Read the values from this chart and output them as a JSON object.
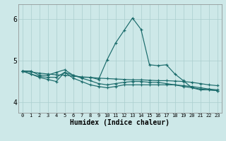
{
  "title": "",
  "xlabel": "Humidex (Indice chaleur)",
  "ylabel": "",
  "bg_color": "#cde8e8",
  "grid_color": "#aacece",
  "line_color": "#1a6b6b",
  "x_ticks": [
    0,
    1,
    2,
    3,
    4,
    5,
    6,
    7,
    8,
    9,
    10,
    11,
    12,
    13,
    14,
    15,
    16,
    17,
    18,
    19,
    20,
    21,
    22,
    23
  ],
  "y_ticks": [
    4,
    5,
    6
  ],
  "ylim": [
    3.75,
    6.35
  ],
  "xlim": [
    -0.5,
    23.5
  ],
  "series": [
    {
      "x": [
        0,
        1,
        2,
        3,
        4,
        5,
        6,
        7,
        8,
        9,
        10,
        11,
        12,
        13,
        14,
        15,
        16,
        17,
        18,
        19,
        20,
        21,
        22,
        23
      ],
      "y": [
        4.75,
        4.75,
        4.65,
        4.65,
        4.72,
        4.78,
        4.65,
        4.6,
        4.6,
        4.55,
        5.02,
        5.42,
        5.72,
        6.02,
        5.75,
        4.9,
        4.88,
        4.9,
        4.68,
        4.52,
        4.35,
        4.3,
        4.3,
        4.28
      ]
    },
    {
      "x": [
        0,
        1,
        2,
        3,
        4,
        5,
        6,
        7,
        8,
        9,
        10,
        11,
        12,
        13,
        14,
        15,
        16,
        17,
        18,
        19,
        20,
        21,
        22,
        23
      ],
      "y": [
        4.75,
        4.73,
        4.7,
        4.68,
        4.66,
        4.65,
        4.63,
        4.61,
        4.6,
        4.58,
        4.57,
        4.56,
        4.55,
        4.54,
        4.54,
        4.53,
        4.52,
        4.52,
        4.51,
        4.5,
        4.48,
        4.45,
        4.42,
        4.4
      ]
    },
    {
      "x": [
        0,
        1,
        2,
        3,
        4,
        5,
        6,
        7,
        8,
        9,
        10,
        11,
        12,
        13,
        14,
        15,
        16,
        17,
        18,
        19,
        20,
        21,
        22,
        23
      ],
      "y": [
        4.75,
        4.68,
        4.6,
        4.55,
        4.5,
        4.72,
        4.58,
        4.5,
        4.42,
        4.38,
        4.35,
        4.38,
        4.42,
        4.42,
        4.42,
        4.42,
        4.42,
        4.42,
        4.42,
        4.4,
        4.38,
        4.35,
        4.32,
        4.3
      ]
    },
    {
      "x": [
        0,
        1,
        2,
        3,
        4,
        5,
        6,
        7,
        8,
        9,
        10,
        11,
        12,
        13,
        14,
        15,
        16,
        17,
        18,
        19,
        20,
        21,
        22,
        23
      ],
      "y": [
        4.75,
        4.68,
        4.62,
        4.6,
        4.6,
        4.72,
        4.65,
        4.58,
        4.52,
        4.45,
        4.42,
        4.45,
        4.48,
        4.5,
        4.5,
        4.48,
        4.48,
        4.45,
        4.42,
        4.38,
        4.35,
        4.32,
        4.3,
        4.28
      ]
    }
  ]
}
